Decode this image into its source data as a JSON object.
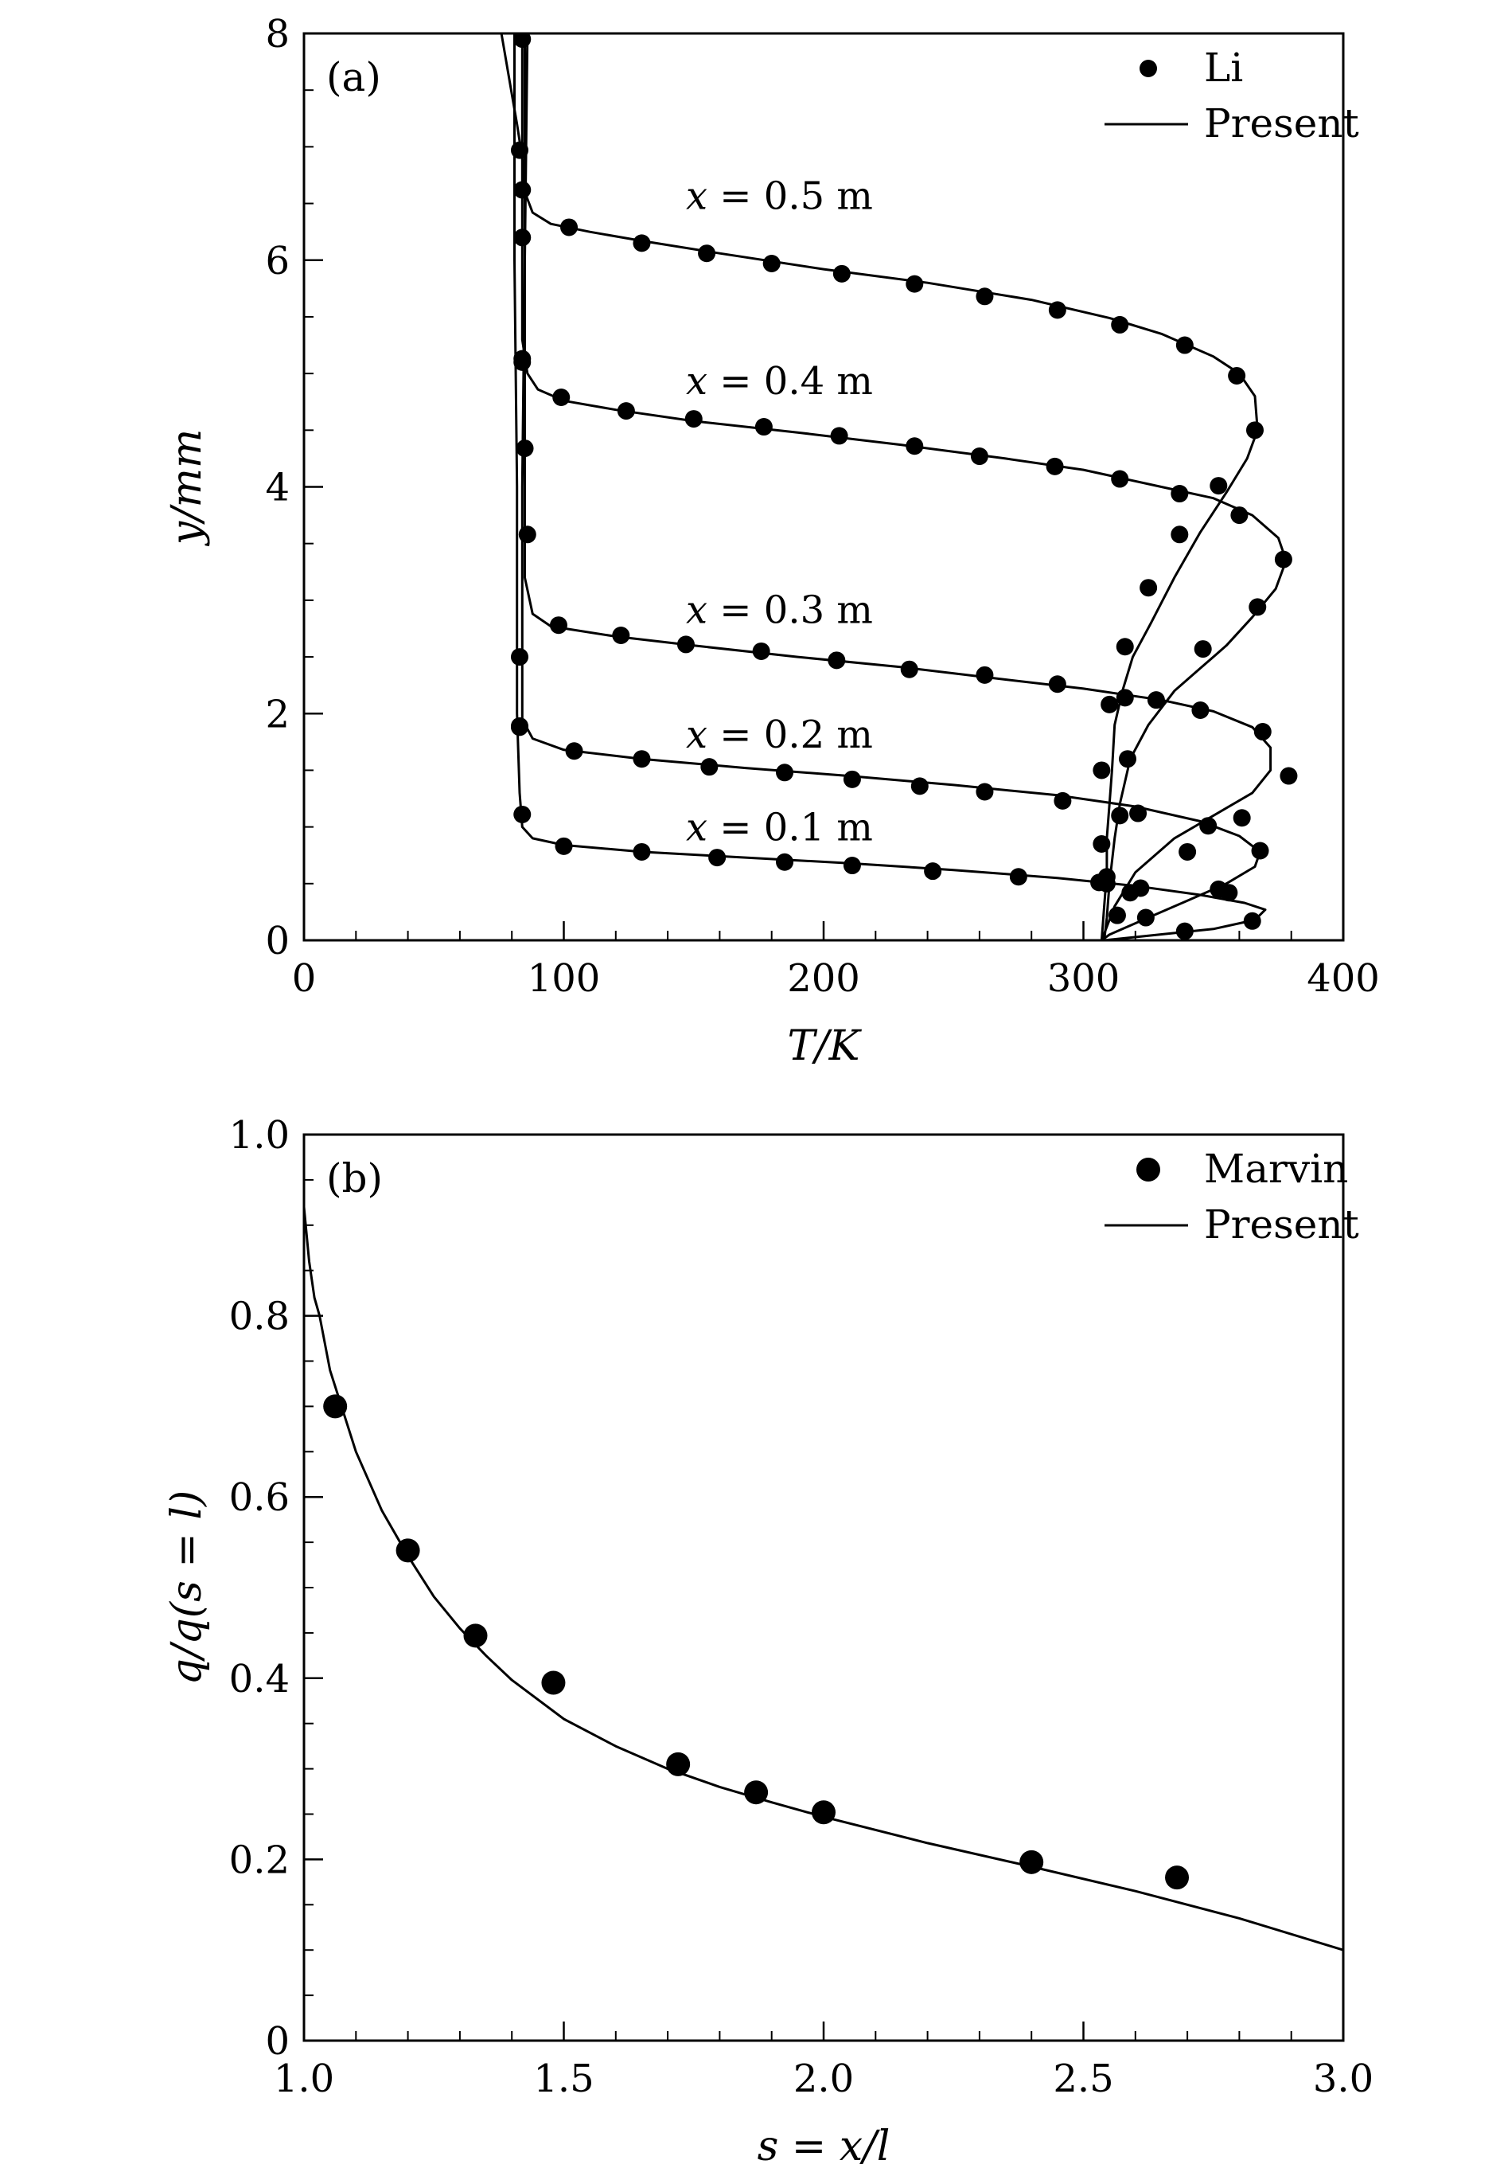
{
  "chart_data": [
    {
      "type": "line",
      "panel": "(a)",
      "xlabel": "T/K",
      "ylabel": "y/mm",
      "xlim": [
        0,
        400
      ],
      "ylim": [
        0,
        8
      ],
      "xticks": [
        0,
        100,
        200,
        300,
        400
      ],
      "yticks": [
        0,
        2,
        4,
        6,
        8
      ],
      "xtick_labels": [
        "0",
        "100",
        "200",
        "300",
        "400"
      ],
      "ytick_labels": [
        "0",
        "2",
        "4",
        "6",
        "8"
      ],
      "x_minor_step": 20,
      "y_minor_step": 0.5,
      "legend": {
        "position": "top-right",
        "markers": "Li",
        "line": "Present"
      },
      "annotations": [
        {
          "text": "x = 0.5 m",
          "x": 147,
          "y": 6.45
        },
        {
          "text": "x = 0.4 m",
          "x": 147,
          "y": 4.82
        },
        {
          "text": "x = 0.3 m",
          "x": 147,
          "y": 2.8
        },
        {
          "text": "x = 0.2 m",
          "x": 147,
          "y": 1.7
        },
        {
          "text": "x = 0.1 m",
          "x": 147,
          "y": 0.88
        }
      ],
      "series": [
        {
          "name": "x = 0.5 m",
          "line": [
            [
              76,
              8.0
            ],
            [
              79,
              7.6
            ],
            [
              82,
              7.2
            ],
            [
              84,
              6.9
            ],
            [
              85,
              6.6
            ],
            [
              88,
              6.42
            ],
            [
              95,
              6.32
            ],
            [
              110,
              6.25
            ],
            [
              130,
              6.17
            ],
            [
              160,
              6.06
            ],
            [
              200,
              5.92
            ],
            [
              240,
              5.8
            ],
            [
              280,
              5.65
            ],
            [
              310,
              5.49
            ],
            [
              330,
              5.35
            ],
            [
              350,
              5.15
            ],
            [
              360,
              5.0
            ],
            [
              366,
              4.8
            ],
            [
              367,
              4.5
            ],
            [
              363,
              4.25
            ],
            [
              355,
              3.95
            ],
            [
              345,
              3.6
            ],
            [
              335,
              3.2
            ],
            [
              326,
              2.8
            ],
            [
              319,
              2.5
            ],
            [
              315,
              2.2
            ],
            [
              312,
              1.9
            ],
            [
              311,
              1.5
            ],
            [
              310,
              1.2
            ],
            [
              309,
              0.9
            ],
            [
              309,
              0.6
            ],
            [
              308,
              0.3
            ],
            [
              307,
              0.0
            ]
          ],
          "points": [
            [
              102,
              6.29
            ],
            [
              130,
              6.15
            ],
            [
              155,
              6.06
            ],
            [
              180,
              5.97
            ],
            [
              207,
              5.88
            ],
            [
              235,
              5.79
            ],
            [
              262,
              5.68
            ],
            [
              290,
              5.56
            ],
            [
              314,
              5.43
            ],
            [
              339,
              5.25
            ],
            [
              359,
              4.98
            ],
            [
              366,
              4.5
            ],
            [
              352,
              4.01
            ],
            [
              337,
              3.58
            ],
            [
              325,
              3.11
            ],
            [
              316,
              2.59
            ],
            [
              310,
              2.08
            ],
            [
              307,
              1.5
            ],
            [
              307,
              0.85
            ]
          ]
        },
        {
          "name": "x = 0.4 m",
          "line": [
            [
              84,
              8.0
            ],
            [
              84,
              6.0
            ],
            [
              84,
              5.3
            ],
            [
              86,
              5.0
            ],
            [
              90,
              4.86
            ],
            [
              100,
              4.76
            ],
            [
              120,
              4.68
            ],
            [
              150,
              4.58
            ],
            [
              190,
              4.48
            ],
            [
              230,
              4.37
            ],
            [
              270,
              4.25
            ],
            [
              300,
              4.15
            ],
            [
              330,
              4.0
            ],
            [
              350,
              3.9
            ],
            [
              365,
              3.75
            ],
            [
              375,
              3.55
            ],
            [
              378,
              3.35
            ],
            [
              374,
              3.1
            ],
            [
              365,
              2.85
            ],
            [
              355,
              2.6
            ],
            [
              345,
              2.4
            ],
            [
              335,
              2.2
            ],
            [
              325,
              1.9
            ],
            [
              318,
              1.6
            ],
            [
              314,
              1.2
            ],
            [
              312,
              0.9
            ],
            [
              310,
              0.5
            ],
            [
              309,
              0.2
            ],
            [
              308,
              0.0
            ]
          ],
          "points": [
            [
              84,
              5.13
            ],
            [
              85,
              4.34
            ],
            [
              86,
              3.58
            ],
            [
              99,
              4.79
            ],
            [
              124,
              4.67
            ],
            [
              150,
              4.6
            ],
            [
              177,
              4.53
            ],
            [
              206,
              4.45
            ],
            [
              235,
              4.36
            ],
            [
              260,
              4.27
            ],
            [
              289,
              4.18
            ],
            [
              314,
              4.07
            ],
            [
              337,
              3.94
            ],
            [
              360,
              3.75
            ],
            [
              377,
              3.36
            ],
            [
              367,
              2.94
            ],
            [
              346,
              2.57
            ],
            [
              328,
              2.12
            ],
            [
              317,
              1.6
            ],
            [
              314,
              1.1
            ],
            [
              309,
              0.5
            ]
          ]
        },
        {
          "name": "x = 0.3 m",
          "line": [
            [
              85,
              8.0
            ],
            [
              85,
              4.0
            ],
            [
              85,
              3.2
            ],
            [
              88,
              2.88
            ],
            [
              95,
              2.77
            ],
            [
              120,
              2.68
            ],
            [
              150,
              2.6
            ],
            [
              190,
              2.5
            ],
            [
              230,
              2.41
            ],
            [
              270,
              2.3
            ],
            [
              300,
              2.22
            ],
            [
              330,
              2.12
            ],
            [
              350,
              2.02
            ],
            [
              365,
              1.88
            ],
            [
              372,
              1.7
            ],
            [
              372,
              1.5
            ],
            [
              365,
              1.3
            ],
            [
              350,
              1.1
            ],
            [
              335,
              0.9
            ],
            [
              320,
              0.6
            ],
            [
              312,
              0.3
            ],
            [
              307,
              0.0
            ]
          ],
          "points": [
            [
              84,
              6.2
            ],
            [
              83,
              2.5
            ],
            [
              83,
              1.89
            ],
            [
              98,
              2.78
            ],
            [
              122,
              2.69
            ],
            [
              147,
              2.61
            ],
            [
              176,
              2.55
            ],
            [
              205,
              2.47
            ],
            [
              233,
              2.39
            ],
            [
              262,
              2.34
            ],
            [
              290,
              2.26
            ],
            [
              316,
              2.14
            ],
            [
              345,
              2.03
            ],
            [
              369,
              1.84
            ],
            [
              379,
              1.45
            ],
            [
              361,
              1.08
            ],
            [
              340,
              0.78
            ],
            [
              318,
              0.42
            ],
            [
              313,
              0.22
            ]
          ]
        },
        {
          "name": "x = 0.2 m",
          "line": [
            [
              86,
              8.0
            ],
            [
              85,
              6.0
            ],
            [
              84,
              4.0
            ],
            [
              84,
              2.2
            ],
            [
              84,
              1.95
            ],
            [
              88,
              1.78
            ],
            [
              100,
              1.68
            ],
            [
              130,
              1.6
            ],
            [
              170,
              1.52
            ],
            [
              210,
              1.45
            ],
            [
              250,
              1.37
            ],
            [
              290,
              1.28
            ],
            [
              320,
              1.18
            ],
            [
              345,
              1.05
            ],
            [
              360,
              0.92
            ],
            [
              368,
              0.78
            ],
            [
              366,
              0.65
            ],
            [
              355,
              0.5
            ],
            [
              340,
              0.35
            ],
            [
              325,
              0.2
            ],
            [
              310,
              0.05
            ],
            [
              307,
              0.0
            ]
          ],
          "points": [
            [
              84,
              5.1
            ],
            [
              83,
              1.88
            ],
            [
              104,
              1.67
            ],
            [
              130,
              1.6
            ],
            [
              156,
              1.53
            ],
            [
              185,
              1.48
            ],
            [
              211,
              1.42
            ],
            [
              237,
              1.36
            ],
            [
              262,
              1.31
            ],
            [
              292,
              1.23
            ],
            [
              321,
              1.12
            ],
            [
              348,
              1.01
            ],
            [
              368,
              0.79
            ],
            [
              356,
              0.42
            ],
            [
              324,
              0.2
            ]
          ]
        },
        {
          "name": "x = 0.1 m",
          "line": [
            [
              81,
              8.0
            ],
            [
              81,
              6.0
            ],
            [
              82,
              4.0
            ],
            [
              82,
              2.0
            ],
            [
              83,
              1.3
            ],
            [
              84,
              1.0
            ],
            [
              88,
              0.9
            ],
            [
              100,
              0.84
            ],
            [
              130,
              0.78
            ],
            [
              170,
              0.73
            ],
            [
              210,
              0.68
            ],
            [
              250,
              0.62
            ],
            [
              290,
              0.55
            ],
            [
              320,
              0.48
            ],
            [
              345,
              0.4
            ],
            [
              362,
              0.33
            ],
            [
              370,
              0.27
            ],
            [
              366,
              0.18
            ],
            [
              350,
              0.1
            ],
            [
              325,
              0.04
            ],
            [
              308,
              0.0
            ]
          ],
          "points": [
            [
              84,
              7.95
            ],
            [
              83,
              6.97
            ],
            [
              84,
              6.62
            ],
            [
              84,
              1.11
            ],
            [
              100,
              0.83
            ],
            [
              130,
              0.78
            ],
            [
              159,
              0.73
            ],
            [
              185,
              0.69
            ],
            [
              211,
              0.66
            ],
            [
              242,
              0.61
            ],
            [
              275,
              0.56
            ],
            [
              306,
              0.51
            ],
            [
              322,
              0.46
            ],
            [
              352,
              0.45
            ],
            [
              365,
              0.17
            ],
            [
              339,
              0.08
            ],
            [
              309,
              0.56
            ]
          ]
        }
      ]
    },
    {
      "type": "line",
      "panel": "(b)",
      "xlabel": "s = x/l",
      "ylabel": "q/q(s = l)",
      "xlim": [
        1.0,
        3.0
      ],
      "ylim": [
        0,
        1.0
      ],
      "xticks": [
        1.0,
        1.5,
        2.0,
        2.5,
        3.0
      ],
      "yticks": [
        0,
        0.2,
        0.4,
        0.6,
        0.8,
        1.0
      ],
      "xtick_labels": [
        "1.0",
        "1.5",
        "2.0",
        "2.5",
        "3.0"
      ],
      "ytick_labels": [
        "0",
        "0.2",
        "0.4",
        "0.6",
        "0.8",
        "1.0"
      ],
      "x_minor_step": 0.1,
      "y_minor_step": 0.05,
      "legend": {
        "position": "top-right",
        "markers": "Marvin",
        "line": "Present"
      },
      "series": [
        {
          "name": "Present",
          "line": [
            [
              1.0,
              0.92
            ],
            [
              1.01,
              0.86
            ],
            [
              1.02,
              0.82
            ],
            [
              1.03,
              0.8
            ],
            [
              1.05,
              0.74
            ],
            [
              1.1,
              0.65
            ],
            [
              1.15,
              0.585
            ],
            [
              1.2,
              0.535
            ],
            [
              1.25,
              0.49
            ],
            [
              1.3,
              0.455
            ],
            [
              1.35,
              0.425
            ],
            [
              1.4,
              0.398
            ],
            [
              1.5,
              0.355
            ],
            [
              1.6,
              0.325
            ],
            [
              1.7,
              0.3
            ],
            [
              1.8,
              0.28
            ],
            [
              1.9,
              0.263
            ],
            [
              2.0,
              0.247
            ],
            [
              2.2,
              0.218
            ],
            [
              2.4,
              0.192
            ],
            [
              2.6,
              0.165
            ],
            [
              2.8,
              0.135
            ],
            [
              3.0,
              0.1
            ]
          ]
        },
        {
          "name": "Marvin",
          "points": [
            [
              1.06,
              0.7
            ],
            [
              1.2,
              0.541
            ],
            [
              1.33,
              0.447
            ],
            [
              1.48,
              0.395
            ],
            [
              1.72,
              0.305
            ],
            [
              1.87,
              0.274
            ],
            [
              2.0,
              0.252
            ],
            [
              2.4,
              0.197
            ],
            [
              2.68,
              0.18
            ]
          ]
        }
      ]
    }
  ]
}
